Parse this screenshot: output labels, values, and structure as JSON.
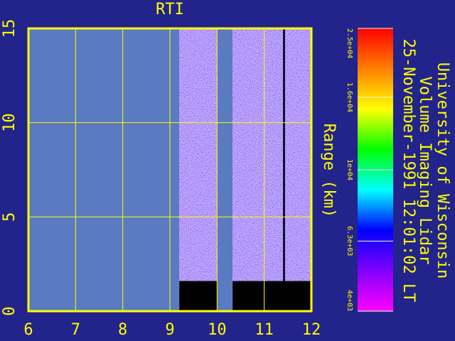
{
  "chart_data": {
    "type": "rti",
    "title": "RTI",
    "y_label": "Range (km)",
    "institution": "University of Wisconsin",
    "instrument": "Volume Imaging Lidar",
    "timestamp": "25-November-1991 12:01:02 LT",
    "xlim": [
      6,
      12
    ],
    "xticks": [
      6,
      7,
      8,
      9,
      10,
      11,
      12
    ],
    "ylim": [
      0,
      15
    ],
    "yticks": [
      0,
      5,
      10,
      15
    ],
    "grid": true,
    "data_segments": [
      [
        9.2,
        10.0
      ],
      [
        10.33,
        12
      ]
    ],
    "blank_below": 1.6,
    "colorbar": {
      "scale": "log",
      "lim": [
        4000,
        25000
      ],
      "colormap": [
        "#ff00ff",
        "#8000ff",
        "#0000ff",
        "#00ffff",
        "#00ff00",
        "#ffff00",
        "#ff8000",
        "#ff0000"
      ],
      "ticks": [
        {
          "value": 25000,
          "label": "2.5e+04"
        },
        {
          "value": 16000,
          "label": "1.6e+04"
        },
        {
          "value": 10000,
          "label": "1e+04"
        },
        {
          "value": 6300,
          "label": "6.3e+03"
        },
        {
          "value": 4000,
          "label": "4e+03"
        }
      ]
    }
  }
}
